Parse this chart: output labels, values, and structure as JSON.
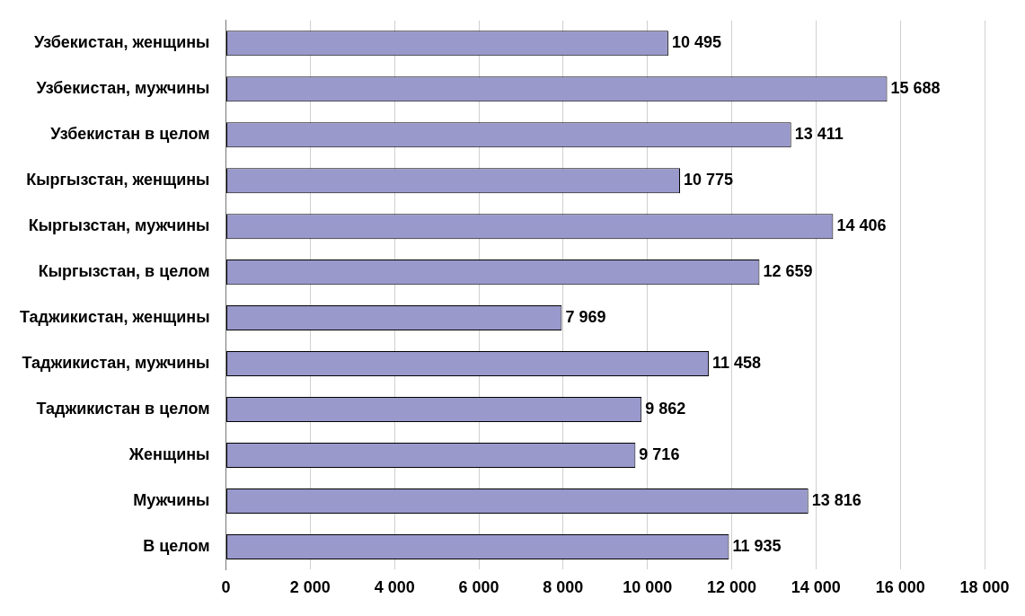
{
  "chart_data": {
    "type": "bar",
    "orientation": "horizontal",
    "categories": [
      "Узбекистан, женщины",
      "Узбекистан, мужчины",
      "Узбекистан в целом",
      "Кыргызстан, женщины",
      "Кыргызстан, мужчины",
      "Кыргызстан, в целом",
      "Таджикистан, женщины",
      "Таджикистан, мужчины",
      "Таджикистан в целом",
      "Женщины",
      "Мужчины",
      "В целом"
    ],
    "values": [
      10495,
      15688,
      13411,
      10775,
      14406,
      12659,
      7969,
      11458,
      9862,
      9716,
      13816,
      11935
    ],
    "value_labels": [
      "10 495",
      "15 688",
      "13 411",
      "10 775",
      "14 406",
      "12 659",
      "7 969",
      "11 458",
      "9 862",
      "9 716",
      "13 816",
      "11 935"
    ],
    "color": "#9999cc",
    "xlim": [
      0,
      18000
    ],
    "xticks": [
      0,
      {
        "value": 2000,
        "label": "2 000"
      },
      {
        "value": 4000,
        "label": "4 000"
      },
      {
        "value": 6000,
        "label": "6 000"
      },
      {
        "value": 8000,
        "label": "8 000"
      },
      {
        "value": 10000,
        "label": "10 000"
      },
      {
        "value": 12000,
        "label": "12 000"
      },
      {
        "value": 14000,
        "label": "14 000"
      },
      {
        "value": 16000,
        "label": "16 000"
      },
      {
        "value": 18000,
        "label": "18 000"
      }
    ],
    "grid": "x",
    "legend": false
  }
}
